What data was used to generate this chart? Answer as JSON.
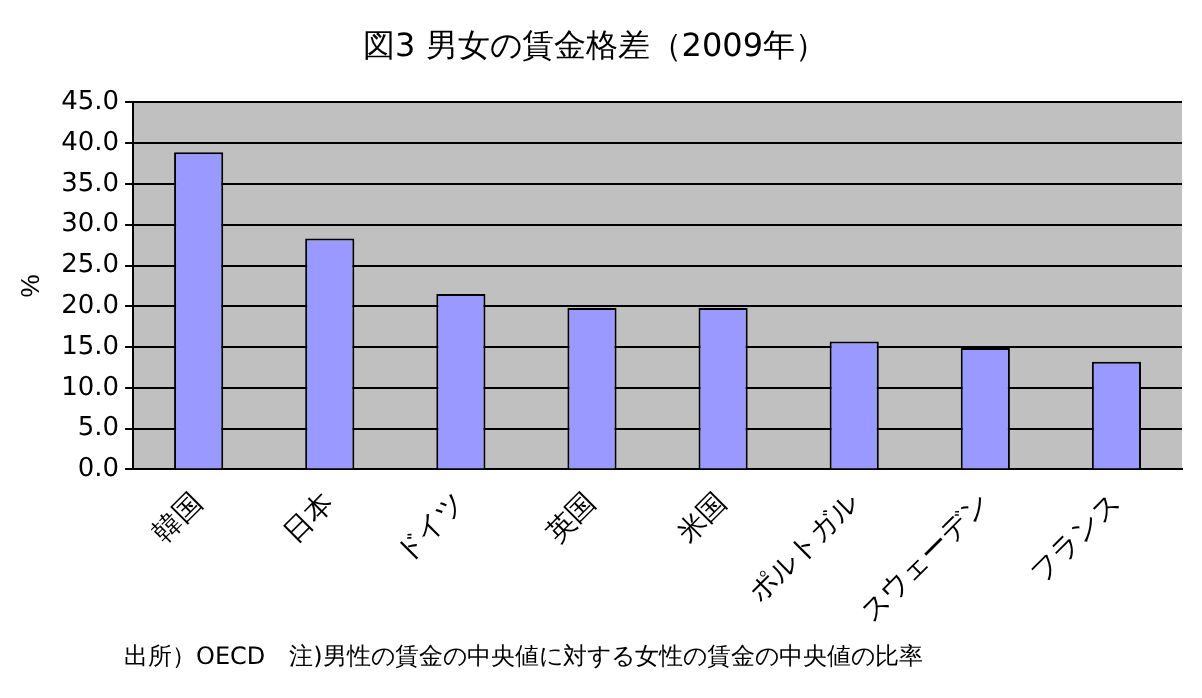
{
  "chart_data": {
    "type": "bar",
    "title": "図3 男女の賃金格差（2009年）",
    "ylabel": "%",
    "categories": [
      "韓国",
      "日本",
      "ドイツ",
      "英国",
      "米国",
      "ポルトガル",
      "スウェーデン",
      "フランス"
    ],
    "values": [
      38.9,
      28.3,
      21.5,
      19.8,
      19.8,
      15.7,
      14.9,
      13.2
    ],
    "color": "#9999ff",
    "ylim": [
      0,
      45
    ],
    "yticks": [
      {
        "value": 0,
        "label": "0.0"
      },
      {
        "value": 5,
        "label": "5.0"
      },
      {
        "value": 10,
        "label": "10.0"
      },
      {
        "value": 15,
        "label": "15.0"
      },
      {
        "value": 20,
        "label": "20.0"
      },
      {
        "value": 25,
        "label": "25.0"
      },
      {
        "value": 30,
        "label": "30.0"
      },
      {
        "value": 35,
        "label": "35.0"
      },
      {
        "value": 40,
        "label": "40.0"
      },
      {
        "value": 45,
        "label": "45.0"
      }
    ],
    "grid": "y",
    "annotations": [
      "出所）OECD　注)男性の賃金の中央値に対する女性の賃金の中央値の比率"
    ]
  }
}
